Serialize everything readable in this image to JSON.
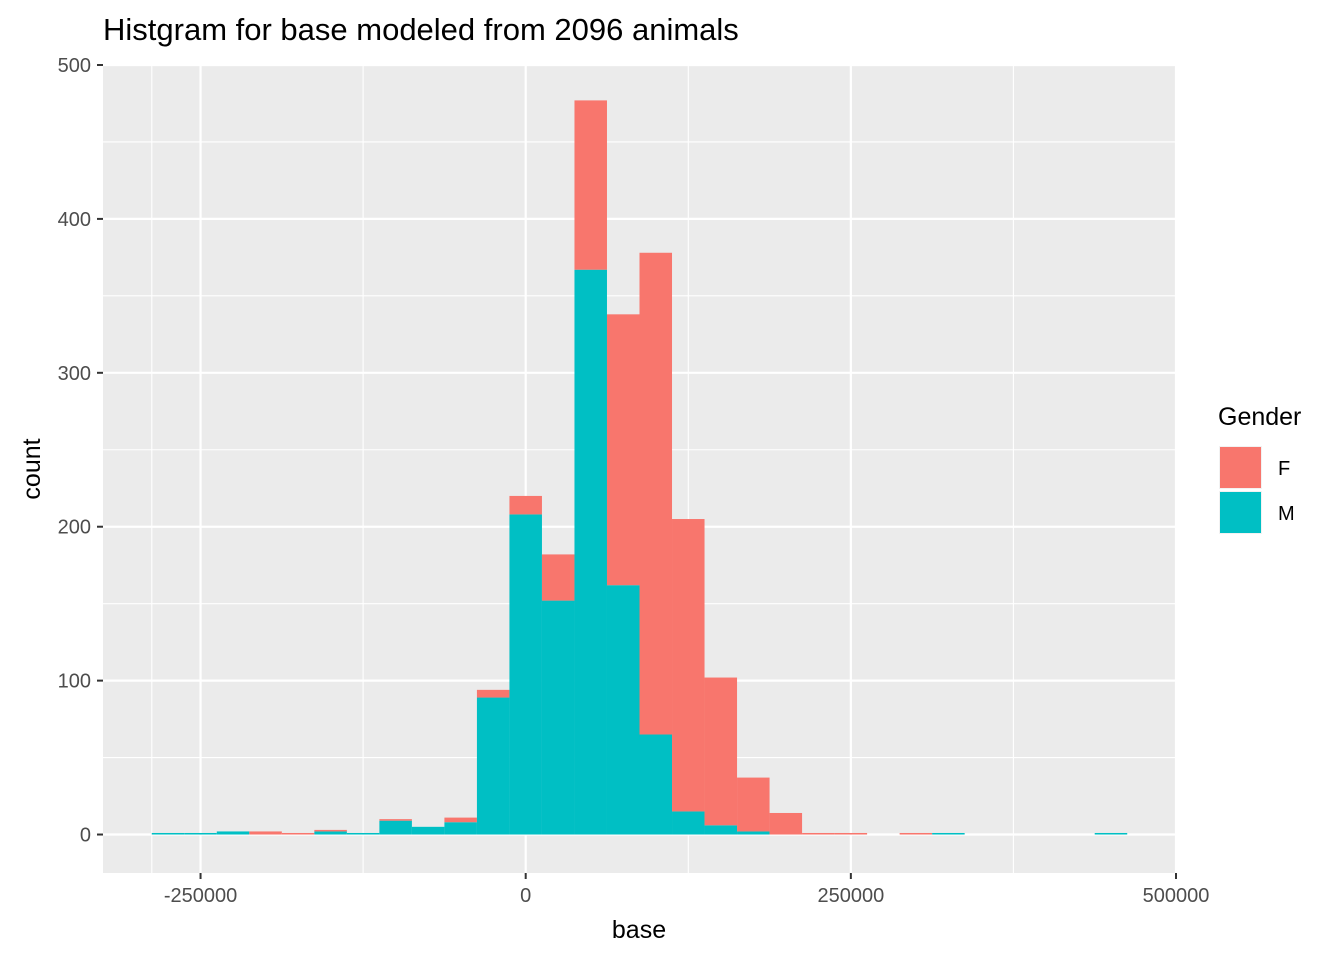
{
  "chart_data": {
    "type": "bar",
    "stacked": true,
    "title": "Histgram for base modeled from 2096 animals",
    "xlabel": "base",
    "ylabel": "count",
    "xlim": [
      -325000,
      500000
    ],
    "ylim": [
      -25,
      500
    ],
    "x_ticks": [
      -250000,
      0,
      250000,
      500000
    ],
    "x_tick_labels": [
      "-250000",
      "0",
      "250000",
      "500000"
    ],
    "y_ticks": [
      0,
      100,
      200,
      300,
      400,
      500
    ],
    "y_tick_labels": [
      "0",
      "100",
      "200",
      "300",
      "400",
      "500"
    ],
    "grid": true,
    "legend_title": "Gender",
    "legend_position": "right",
    "colors": {
      "F": "#F8766D",
      "M": "#00BFC4",
      "panel": "#EBEBEB",
      "grid": "#FFFFFF"
    },
    "bin_width": 25000,
    "bin_centers": [
      -275000,
      -250000,
      -225000,
      -200000,
      -175000,
      -150000,
      -125000,
      -100000,
      -75000,
      -50000,
      -25000,
      0,
      25000,
      50000,
      75000,
      100000,
      125000,
      150000,
      175000,
      200000,
      225000,
      250000,
      275000,
      300000,
      325000,
      350000,
      375000,
      400000,
      425000,
      450000
    ],
    "series": [
      {
        "name": "F",
        "values": [
          0,
          0,
          0,
          2,
          1,
          1,
          0,
          1,
          0,
          3,
          5,
          12,
          30,
          110,
          176,
          313,
          190,
          96,
          35,
          14,
          1,
          1,
          0,
          1,
          0,
          0,
          0,
          0,
          0,
          0
        ]
      },
      {
        "name": "M",
        "values": [
          1,
          1,
          2,
          0,
          0,
          2,
          1,
          9,
          5,
          8,
          89,
          208,
          152,
          367,
          162,
          65,
          15,
          6,
          2,
          0,
          0,
          0,
          0,
          0,
          1,
          0,
          0,
          0,
          0,
          1
        ]
      }
    ]
  }
}
